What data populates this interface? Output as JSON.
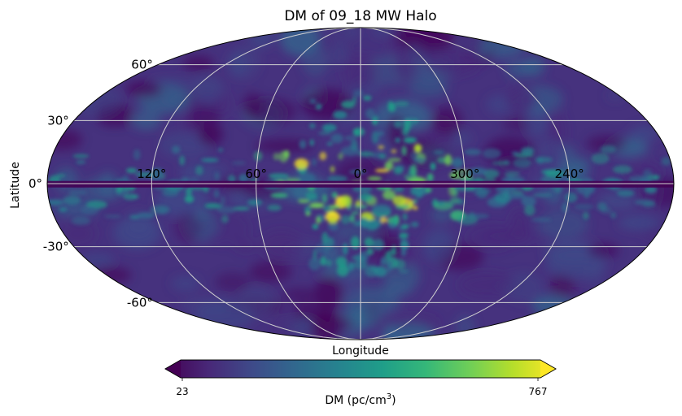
{
  "chart_data": {
    "type": "heatmap",
    "projection": "mollweide",
    "title": "DM of 09_18 MW Halo",
    "xlabel": "Longitude",
    "ylabel": "Latitude",
    "longitude_tick_labels": [
      "120°",
      "60°",
      "0°",
      "300°",
      "240°"
    ],
    "latitude_tick_labels": [
      "60°",
      "30°",
      "0°",
      "-30°",
      "-60°"
    ],
    "longitude_ticks_deg": [
      120,
      60,
      0,
      -60,
      -120
    ],
    "latitude_ticks_deg": [
      60,
      30,
      0,
      -30,
      -60
    ],
    "grid": true,
    "colormap": "viridis",
    "colorbar": {
      "label_prefix": "DM (pc/cm",
      "label_superscript": "3",
      "label_suffix": ")",
      "min_label": "23",
      "max_label": "767",
      "vmin": 23,
      "vmax": 767,
      "extend": "both",
      "orientation": "horizontal"
    }
  },
  "colors": {
    "viridis": [
      "#440154",
      "#482878",
      "#3e4a89",
      "#31688e",
      "#26838f",
      "#1f9e89",
      "#35b779",
      "#6ece58",
      "#b5de2b",
      "#fde725"
    ],
    "grid": "#d0d0d0",
    "outline": "#000000"
  }
}
